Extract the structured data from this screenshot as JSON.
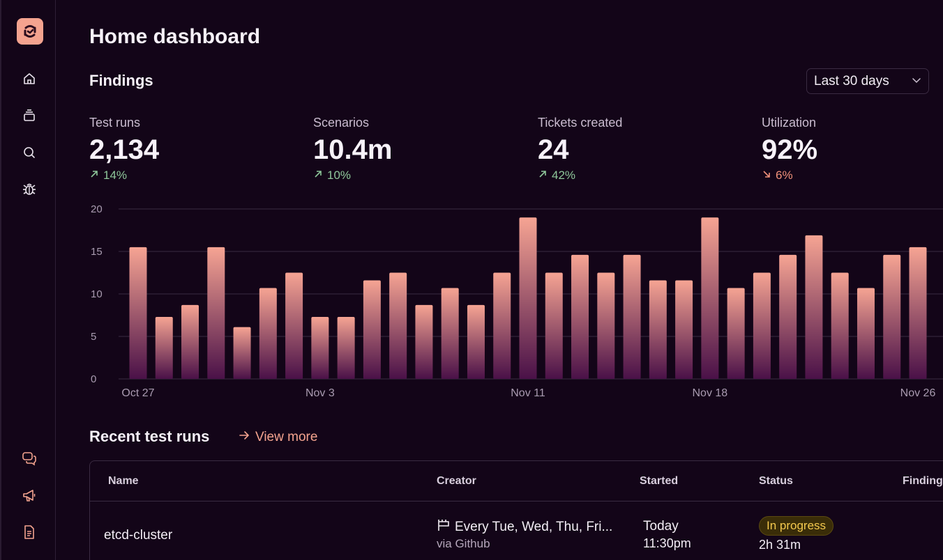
{
  "nav": {
    "items": [
      {
        "name": "home-icon"
      },
      {
        "name": "stack-icon"
      },
      {
        "name": "search-icon"
      },
      {
        "name": "bug-icon"
      }
    ],
    "bottom_items": [
      {
        "name": "chat-icon"
      },
      {
        "name": "megaphone-icon"
      },
      {
        "name": "document-icon"
      }
    ],
    "accent": "#f4a38f"
  },
  "header": {
    "title": "Home dashboard"
  },
  "findings": {
    "title": "Findings",
    "range_selected": "Last 30 days"
  },
  "stats": [
    {
      "label": "Test runs",
      "value": "2,134",
      "delta": "14%",
      "direction": "up"
    },
    {
      "label": "Scenarios",
      "value": "10.4m",
      "delta": "10%",
      "direction": "up"
    },
    {
      "label": "Tickets created",
      "value": "24",
      "delta": "42%",
      "direction": "up"
    },
    {
      "label": "Utilization",
      "value": "92%",
      "delta": "6%",
      "direction": "down"
    }
  ],
  "chart_data": {
    "type": "bar",
    "ylim": [
      0,
      20
    ],
    "yticks": [
      0,
      5,
      10,
      15,
      20
    ],
    "xtick_labels": [
      {
        "label": "Oct 27",
        "index": 0
      },
      {
        "label": "Nov 3",
        "index": 7
      },
      {
        "label": "Nov 11",
        "index": 15
      },
      {
        "label": "Nov 18",
        "index": 22
      },
      {
        "label": "Nov 26",
        "index": 30
      }
    ],
    "values": [
      15.5,
      7.3,
      8.7,
      15.5,
      6.1,
      10.7,
      12.5,
      7.3,
      7.3,
      11.6,
      12.5,
      8.7,
      10.7,
      8.7,
      12.5,
      19,
      12.5,
      14.6,
      12.5,
      14.6,
      11.6,
      11.6,
      19,
      10.7,
      12.5,
      14.6,
      16.9,
      12.5,
      10.7,
      14.6,
      15.5
    ],
    "grid": true,
    "colors": {
      "top": "#f6a493",
      "bottom": "#4a1148"
    }
  },
  "recent": {
    "title": "Recent test runs",
    "view_more": "View more",
    "columns": [
      "Name",
      "Creator",
      "Started",
      "Status",
      "Finding"
    ],
    "rows": [
      {
        "name": "etcd-cluster",
        "creator": "Every Tue, Wed, Thu, Fri...",
        "creator_sub": "via Github",
        "started": "Today",
        "started_sub": "11:30pm",
        "status": "In progress",
        "status_sub": "2h 31m"
      }
    ]
  }
}
